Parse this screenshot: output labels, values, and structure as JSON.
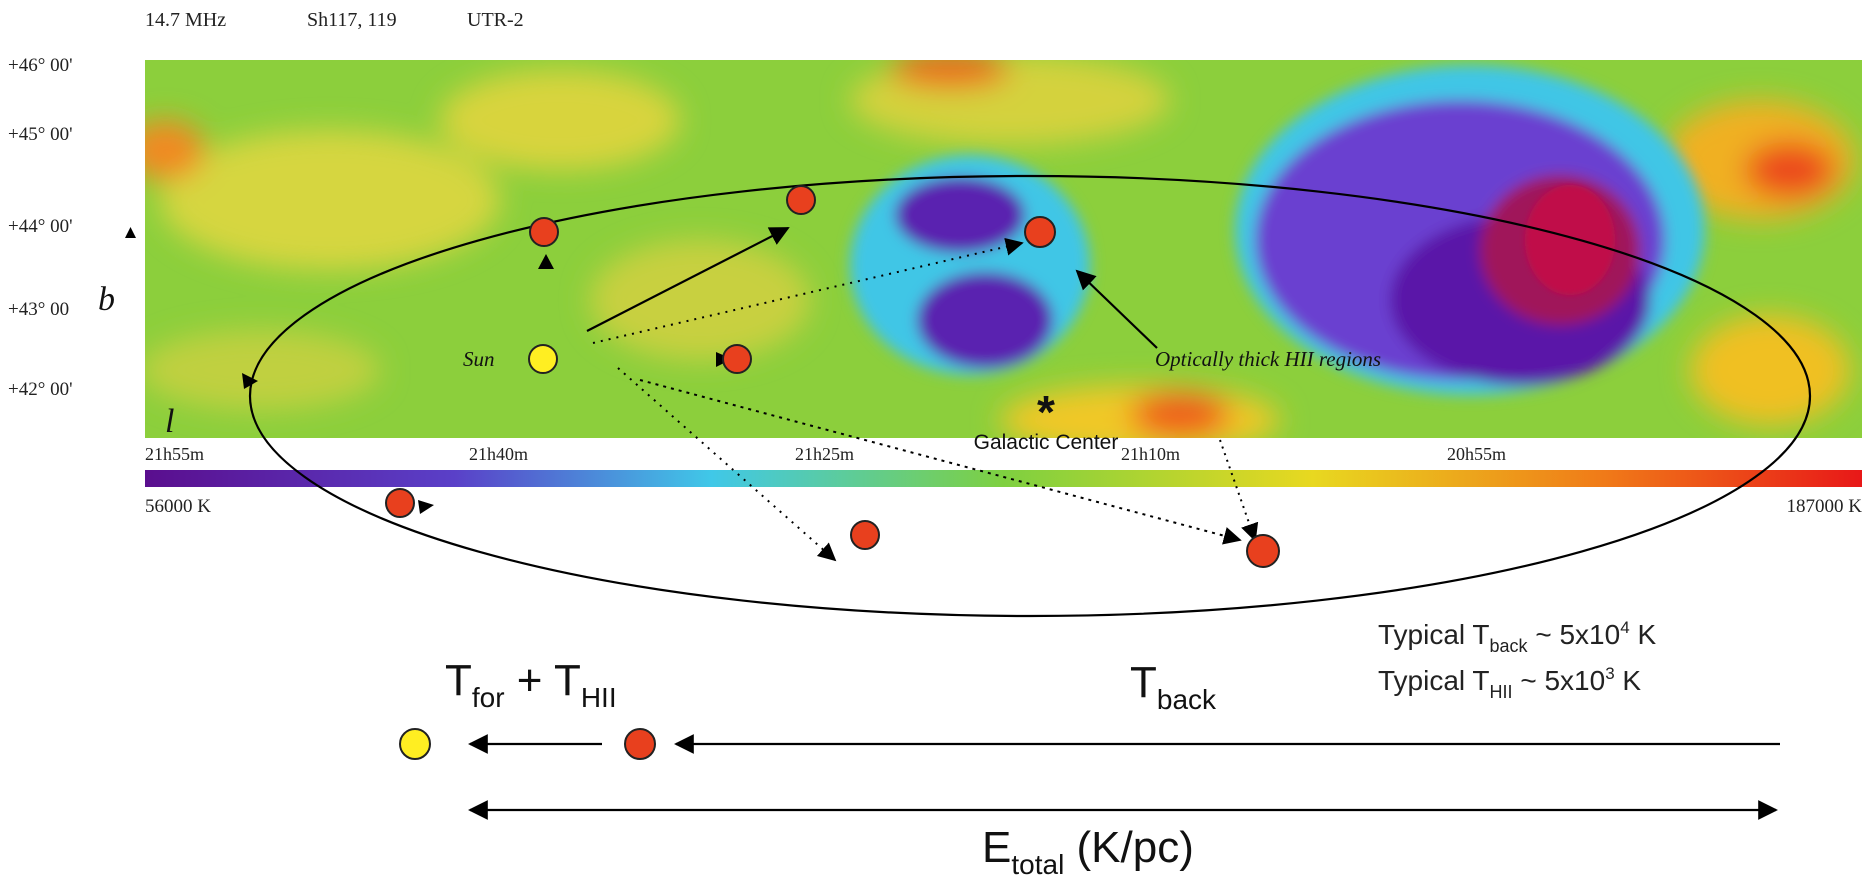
{
  "header": {
    "frequency": "14.7 MHz",
    "sources": "Sh117, 119",
    "telescope": "UTR-2"
  },
  "map": {
    "dec_ticks": [
      "+46° 00'",
      "+45° 00'",
      "+44° 00'",
      "+43° 00",
      "+42° 00'"
    ],
    "ra_ticks": [
      "21h55m",
      "21h40m",
      "21h25m",
      "21h10m",
      "20h55m"
    ],
    "b_axis_label": "b",
    "l_axis_label": "l",
    "colorbar_min": "56000 K",
    "colorbar_max": "187000 K",
    "colors": {
      "background_field": "#8ccf3c",
      "cold_region": "#5a16a8",
      "deep_region": "#b0124a",
      "halo": "#3fc6e6",
      "warm": "#f0c020",
      "hot": "#e8401c"
    }
  },
  "annotations": {
    "sun_label": "Sun",
    "hii_label": "Optically thick HII regions",
    "galactic_center_label": "Galactic Center",
    "galactic_center_marker": "*"
  },
  "legend": {
    "t_back_typical_prefix": "Typical T",
    "t_back_sub": "back",
    "t_back_value": " ~ 5x10",
    "t_back_exp": "4",
    "t_back_unit": " K",
    "t_hii_typical_prefix": "Typical T",
    "t_hii_sub": "HII",
    "t_hii_value": " ~ 5x10",
    "t_hii_exp": "3",
    "t_hii_unit": " K"
  },
  "bottom": {
    "t_for_main": "T",
    "t_for_sub": "for",
    "plus": " + ",
    "t_hii_main": "T",
    "t_hii_sub": "HII",
    "t_back_main": "T",
    "t_back_sub": "back",
    "e_main": "E",
    "e_sub": "total",
    "e_unit": " (K/pc)"
  },
  "marker_colors": {
    "sun_fill": "#ffee22",
    "hii_fill": "#e8401e",
    "outline": "#222222"
  }
}
